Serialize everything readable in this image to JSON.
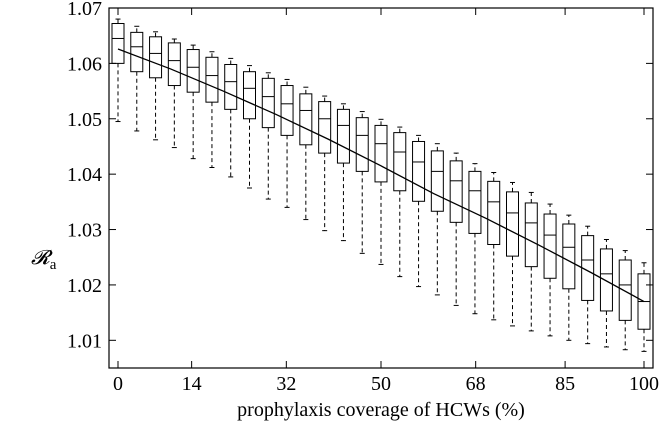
{
  "chart_data": {
    "type": "box",
    "xlabel": "prophylaxis coverage of HCWs (%)",
    "ylabel": "𝓡",
    "ylabel_sub": "a",
    "xlim": [
      0,
      100
    ],
    "ylim": [
      1.005,
      1.07
    ],
    "xticks": [
      0,
      14,
      32,
      50,
      68,
      85,
      100
    ],
    "yticks": [
      1.01,
      1.02,
      1.03,
      1.04,
      1.05,
      1.06,
      1.07
    ],
    "ytick_labels": [
      "1.01",
      "1.02",
      "1.03",
      "1.04",
      "1.05",
      "1.06",
      "1.07"
    ],
    "grid": false,
    "boxes": [
      {
        "x": 0,
        "whislo": 1.0495,
        "q1": 1.06,
        "med": 1.0645,
        "q3": 1.0672,
        "whishi": 1.068
      },
      {
        "x": 3.57,
        "whislo": 1.0478,
        "q1": 1.0585,
        "med": 1.063,
        "q3": 1.0656,
        "whishi": 1.0667
      },
      {
        "x": 7.14,
        "whislo": 1.0462,
        "q1": 1.0574,
        "med": 1.0618,
        "q3": 1.0648,
        "whishi": 1.0657
      },
      {
        "x": 10.71,
        "whislo": 1.0448,
        "q1": 1.056,
        "med": 1.0605,
        "q3": 1.0637,
        "whishi": 1.0644
      },
      {
        "x": 14.29,
        "whislo": 1.0428,
        "q1": 1.0548,
        "med": 1.0593,
        "q3": 1.0625,
        "whishi": 1.0633
      },
      {
        "x": 17.86,
        "whislo": 1.0412,
        "q1": 1.053,
        "med": 1.0578,
        "q3": 1.0611,
        "whishi": 1.0621
      },
      {
        "x": 21.43,
        "whislo": 1.0395,
        "q1": 1.0517,
        "med": 1.0567,
        "q3": 1.0598,
        "whishi": 1.0609
      },
      {
        "x": 25,
        "whislo": 1.0375,
        "q1": 1.05,
        "med": 1.0555,
        "q3": 1.0585,
        "whishi": 1.0596
      },
      {
        "x": 28.57,
        "whislo": 1.0355,
        "q1": 1.0484,
        "med": 1.054,
        "q3": 1.0573,
        "whishi": 1.0583
      },
      {
        "x": 32.14,
        "whislo": 1.034,
        "q1": 1.047,
        "med": 1.0527,
        "q3": 1.056,
        "whishi": 1.0571
      },
      {
        "x": 35.71,
        "whislo": 1.0318,
        "q1": 1.0453,
        "med": 1.0515,
        "q3": 1.0545,
        "whishi": 1.0557
      },
      {
        "x": 39.29,
        "whislo": 1.0298,
        "q1": 1.0438,
        "med": 1.05,
        "q3": 1.0531,
        "whishi": 1.0541
      },
      {
        "x": 42.86,
        "whislo": 1.028,
        "q1": 1.042,
        "med": 1.0488,
        "q3": 1.0517,
        "whishi": 1.0527
      },
      {
        "x": 46.43,
        "whislo": 1.0257,
        "q1": 1.0405,
        "med": 1.047,
        "q3": 1.0502,
        "whishi": 1.0513
      },
      {
        "x": 50,
        "whislo": 1.0237,
        "q1": 1.0386,
        "med": 1.0455,
        "q3": 1.0488,
        "whishi": 1.0499
      },
      {
        "x": 53.57,
        "whislo": 1.0215,
        "q1": 1.037,
        "med": 1.044,
        "q3": 1.0475,
        "whishi": 1.0485
      },
      {
        "x": 57.14,
        "whislo": 1.0197,
        "q1": 1.0351,
        "med": 1.0422,
        "q3": 1.0459,
        "whishi": 1.047
      },
      {
        "x": 60.71,
        "whislo": 1.0182,
        "q1": 1.0333,
        "med": 1.0405,
        "q3": 1.0442,
        "whishi": 1.0455
      },
      {
        "x": 64.29,
        "whislo": 1.0163,
        "q1": 1.0313,
        "med": 1.0388,
        "q3": 1.0424,
        "whishi": 1.0438
      },
      {
        "x": 67.86,
        "whislo": 1.0148,
        "q1": 1.0293,
        "med": 1.037,
        "q3": 1.0405,
        "whishi": 1.0419
      },
      {
        "x": 71.43,
        "whislo": 1.0137,
        "q1": 1.0273,
        "med": 1.035,
        "q3": 1.0387,
        "whishi": 1.0403
      },
      {
        "x": 75,
        "whislo": 1.0126,
        "q1": 1.0252,
        "med": 1.033,
        "q3": 1.0368,
        "whishi": 1.0385
      },
      {
        "x": 78.57,
        "whislo": 1.0117,
        "q1": 1.0233,
        "med": 1.0312,
        "q3": 1.0348,
        "whishi": 1.0367
      },
      {
        "x": 82.14,
        "whislo": 1.0108,
        "q1": 1.0212,
        "med": 1.029,
        "q3": 1.0328,
        "whishi": 1.0346
      },
      {
        "x": 85.71,
        "whislo": 1.01,
        "q1": 1.0193,
        "med": 1.0268,
        "q3": 1.031,
        "whishi": 1.0326
      },
      {
        "x": 89.29,
        "whislo": 1.0094,
        "q1": 1.0172,
        "med": 1.0245,
        "q3": 1.0289,
        "whishi": 1.0306
      },
      {
        "x": 92.86,
        "whislo": 1.0088,
        "q1": 1.0153,
        "med": 1.022,
        "q3": 1.0265,
        "whishi": 1.0282
      },
      {
        "x": 96.43,
        "whislo": 1.0083,
        "q1": 1.0136,
        "med": 1.02,
        "q3": 1.0245,
        "whishi": 1.0262
      },
      {
        "x": 100,
        "whislo": 1.008,
        "q1": 1.012,
        "med": 1.017,
        "q3": 1.022,
        "whishi": 1.024
      }
    ],
    "trend_line": {
      "x": [
        0,
        10,
        20,
        30,
        40,
        50,
        60,
        70,
        80,
        90,
        100
      ],
      "y": [
        1.0626,
        1.059,
        1.055,
        1.0508,
        1.0463,
        1.0415,
        1.0365,
        1.032,
        1.0272,
        1.0222,
        1.017
      ]
    }
  }
}
